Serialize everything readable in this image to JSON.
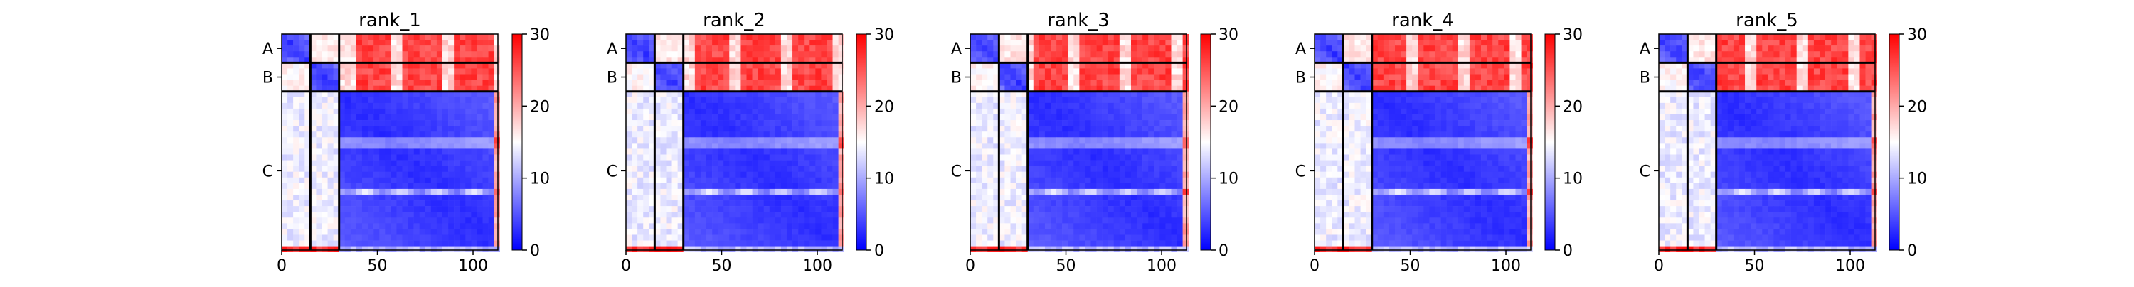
{
  "chart_data": {
    "type": "heatmap",
    "colormap": {
      "low": "#0000ff",
      "mid": "#ffffff",
      "high": "#ff0000"
    },
    "colorbar": {
      "vmin": 0,
      "vmax": 30,
      "ticks": [
        "0",
        "10",
        "20",
        "30"
      ]
    },
    "x_ticks": [
      0,
      50,
      100
    ],
    "x_tick_labels": [
      "0",
      "50",
      "100"
    ],
    "xlim": [
      0,
      113
    ],
    "chains": [
      {
        "label": "A",
        "start": 0,
        "end": 15
      },
      {
        "label": "B",
        "start": 15,
        "end": 30
      },
      {
        "label": "C",
        "start": 30,
        "end": 113
      }
    ],
    "panels": [
      {
        "title": "rank_1"
      },
      {
        "title": "rank_2"
      },
      {
        "title": "rank_3"
      },
      {
        "title": "rank_4"
      },
      {
        "title": "rank_5"
      }
    ]
  }
}
